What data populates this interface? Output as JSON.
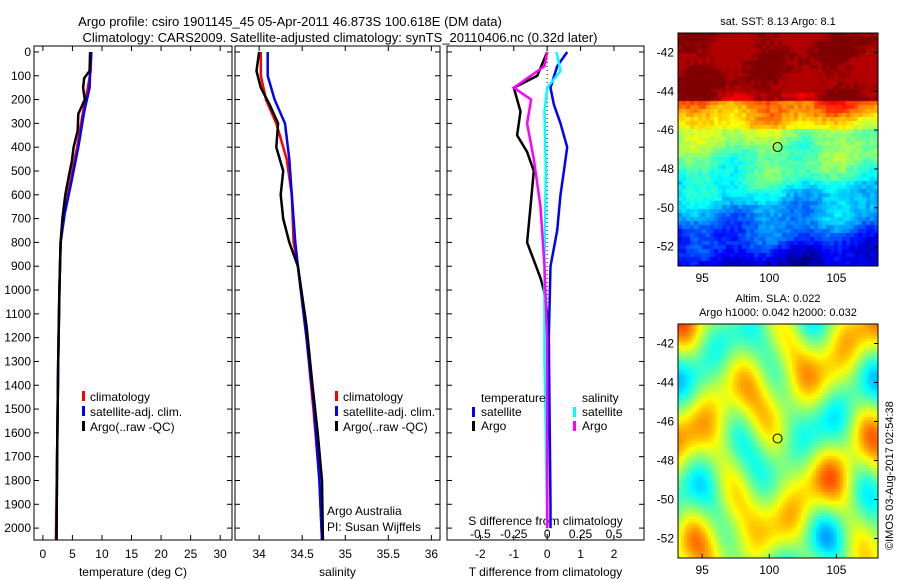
{
  "title": [
    "Argo profile: csiro 1901145_45 05-Apr-2011 46.873S 100.618E (DM data)",
    "Climatology: CARS2009. Satellite-adjusted climatology: synTS_20110406.nc (0.32d later)"
  ],
  "side_label": "©IMOS 03-Aug-2017 02:54:38",
  "chart_data": [
    {
      "type": "line",
      "id": "temperature",
      "xlabel": "temperature (deg C)",
      "ylabel": "",
      "xlim": [
        -1.5,
        32
      ],
      "ylim": [
        2050,
        -25
      ],
      "xticks": [
        0,
        5,
        10,
        15,
        20,
        25,
        30
      ],
      "yticks": [
        0,
        100,
        200,
        300,
        400,
        500,
        600,
        700,
        800,
        900,
        1000,
        1100,
        1200,
        1300,
        1400,
        1500,
        1600,
        1700,
        1800,
        1900,
        2000
      ],
      "legend": [
        "climatology",
        "satellite-adj. clim.",
        "Argo(..raw -QC)"
      ],
      "series": [
        {
          "name": "climatology",
          "color": "#ff0000",
          "points": [
            [
              8.2,
              0
            ],
            [
              8.1,
              80
            ],
            [
              7.6,
              150
            ],
            [
              6.8,
              250
            ],
            [
              5.8,
              400
            ],
            [
              4.6,
              550
            ],
            [
              3.6,
              680
            ],
            [
              3.0,
              800
            ],
            [
              2.8,
              1000
            ],
            [
              2.6,
              1300
            ],
            [
              2.4,
              1700
            ],
            [
              2.2,
              2050
            ]
          ]
        },
        {
          "name": "satellite-adj. clim.",
          "color": "#0000ff",
          "points": [
            [
              8.2,
              0
            ],
            [
              8.0,
              80
            ],
            [
              7.9,
              150
            ],
            [
              7.0,
              250
            ],
            [
              6.0,
              400
            ],
            [
              4.8,
              550
            ],
            [
              3.7,
              680
            ],
            [
              3.0,
              800
            ],
            [
              2.8,
              1000
            ],
            [
              2.6,
              1300
            ],
            [
              2.4,
              1700
            ],
            [
              2.3,
              2050
            ]
          ]
        },
        {
          "name": "Argo(..raw -QC)",
          "color": "#000000",
          "points": [
            [
              8.0,
              0
            ],
            [
              7.9,
              80
            ],
            [
              7.0,
              110
            ],
            [
              6.8,
              150
            ],
            [
              7.1,
              200
            ],
            [
              6.0,
              260
            ],
            [
              5.9,
              330
            ],
            [
              5.2,
              400
            ],
            [
              4.9,
              460
            ],
            [
              4.4,
              520
            ],
            [
              3.8,
              600
            ],
            [
              3.3,
              700
            ],
            [
              3.0,
              800
            ],
            [
              2.8,
              1000
            ],
            [
              2.6,
              1300
            ],
            [
              2.4,
              1700
            ],
            [
              2.3,
              2050
            ]
          ]
        }
      ]
    },
    {
      "type": "line",
      "id": "salinity",
      "xlabel": "salinity",
      "ylabel": "",
      "xlim": [
        33.72,
        36.1
      ],
      "ylim": [
        2050,
        -25
      ],
      "xticks": [
        34,
        34.5,
        35,
        35.5,
        36
      ],
      "legend": [
        "climatology",
        "satellite-adj. clim.",
        "Argo(..raw -QC)"
      ],
      "annotation": [
        "Argo Australia",
        "PI: Susan Wijffels"
      ],
      "series": [
        {
          "name": "climatology",
          "color": "#ff0000",
          "points": [
            [
              34.02,
              0
            ],
            [
              34.02,
              100
            ],
            [
              34.08,
              200
            ],
            [
              34.2,
              300
            ],
            [
              34.32,
              450
            ],
            [
              34.38,
              600
            ],
            [
              34.4,
              800
            ],
            [
              34.45,
              900
            ],
            [
              34.55,
              1200
            ],
            [
              34.63,
              1500
            ],
            [
              34.7,
              1800
            ],
            [
              34.73,
              2050
            ]
          ]
        },
        {
          "name": "satellite-adj. clim.",
          "color": "#0000ff",
          "points": [
            [
              34.1,
              0
            ],
            [
              34.1,
              100
            ],
            [
              34.18,
              200
            ],
            [
              34.3,
              300
            ],
            [
              34.35,
              450
            ],
            [
              34.38,
              600
            ],
            [
              34.42,
              800
            ],
            [
              34.45,
              900
            ],
            [
              34.55,
              1200
            ],
            [
              34.64,
              1500
            ],
            [
              34.7,
              1800
            ],
            [
              34.73,
              2050
            ]
          ]
        },
        {
          "name": "Argo(..raw -QC)",
          "color": "#000000",
          "points": [
            [
              34.0,
              0
            ],
            [
              33.97,
              80
            ],
            [
              34.02,
              150
            ],
            [
              34.12,
              220
            ],
            [
              34.22,
              300
            ],
            [
              34.2,
              400
            ],
            [
              34.28,
              500
            ],
            [
              34.25,
              600
            ],
            [
              34.28,
              700
            ],
            [
              34.35,
              800
            ],
            [
              34.45,
              900
            ],
            [
              34.55,
              1150
            ],
            [
              34.62,
              1400
            ],
            [
              34.68,
              1600
            ],
            [
              34.73,
              1800
            ],
            [
              34.74,
              2050
            ]
          ]
        }
      ]
    },
    {
      "type": "line",
      "id": "differences",
      "xlabel": "T difference from climatology",
      "xlabel2": "S difference from climatology",
      "xlim": [
        -3,
        2.9
      ],
      "ylim": [
        2050,
        -25
      ],
      "xticks": [
        -2,
        -1,
        0,
        1,
        2
      ],
      "xticks2": [
        -0.5,
        -0.25,
        0,
        0.25,
        0.5
      ],
      "legend_headers": [
        "temperature",
        "salinity"
      ],
      "legend": [
        "satellite",
        "Argo",
        "satellite",
        "Argo"
      ],
      "series": [
        {
          "name": "T satellite",
          "color": "#0000ff",
          "points": [
            [
              0.6,
              0
            ],
            [
              0.3,
              60
            ],
            [
              0.1,
              150
            ],
            [
              0.2,
              220
            ],
            [
              0.4,
              300
            ],
            [
              0.6,
              400
            ],
            [
              0.5,
              500
            ],
            [
              0.4,
              600
            ],
            [
              0.3,
              750
            ],
            [
              0.1,
              900
            ],
            [
              0.05,
              1200
            ],
            [
              0.1,
              1900
            ],
            [
              0.1,
              2000
            ]
          ]
        },
        {
          "name": "T Argo",
          "color": "#000000",
          "points": [
            [
              0,
              0
            ],
            [
              -0.3,
              100
            ],
            [
              -1.0,
              150
            ],
            [
              -0.8,
              250
            ],
            [
              -0.9,
              350
            ],
            [
              -0.6,
              420
            ],
            [
              -0.4,
              500
            ],
            [
              -0.5,
              650
            ],
            [
              -0.6,
              800
            ],
            [
              -0.2,
              950
            ],
            [
              -0.1,
              1000
            ],
            [
              0,
              1100
            ],
            [
              0,
              2000
            ]
          ]
        },
        {
          "name": "S satellite",
          "color": "#00ffff",
          "points": [
            [
              0.07,
              0
            ],
            [
              0.1,
              80
            ],
            [
              0.0,
              150
            ],
            [
              -0.02,
              250
            ],
            [
              -0.01,
              500
            ],
            [
              -0.02,
              900
            ],
            [
              -0.02,
              1300
            ],
            [
              -0.01,
              1600
            ],
            [
              0,
              2000
            ]
          ]
        },
        {
          "name": "S Argo",
          "color": "#ff00ff",
          "points": [
            [
              0,
              0
            ],
            [
              -0.02,
              60
            ],
            [
              -0.25,
              150
            ],
            [
              -0.12,
              200
            ],
            [
              -0.15,
              300
            ],
            [
              -0.1,
              450
            ],
            [
              -0.05,
              650
            ],
            [
              -0.02,
              900
            ],
            [
              0,
              1200
            ],
            [
              0,
              2000
            ]
          ]
        }
      ]
    },
    {
      "type": "heatmap",
      "id": "sst-map",
      "title": "sat. SST: 8.13 Argo: 8.1",
      "xlim": [
        93.2,
        108.1
      ],
      "ylim": [
        -53,
        -41
      ],
      "xticks": [
        95,
        100,
        105
      ],
      "yticks": [
        -42,
        -44,
        -46,
        -48,
        -50,
        -52
      ],
      "marker": [
        100.618,
        -46.873
      ]
    },
    {
      "type": "heatmap",
      "id": "sla-map",
      "title": [
        "Altim. SLA: 0.022",
        "Argo h1000: 0.042 h2000: 0.032"
      ],
      "xlim": [
        93.2,
        108.1
      ],
      "ylim": [
        -53,
        -41
      ],
      "xticks": [
        95,
        100,
        105
      ],
      "yticks": [
        -42,
        -44,
        -46,
        -48,
        -50,
        -52
      ],
      "marker": [
        100.618,
        -46.873
      ]
    }
  ]
}
